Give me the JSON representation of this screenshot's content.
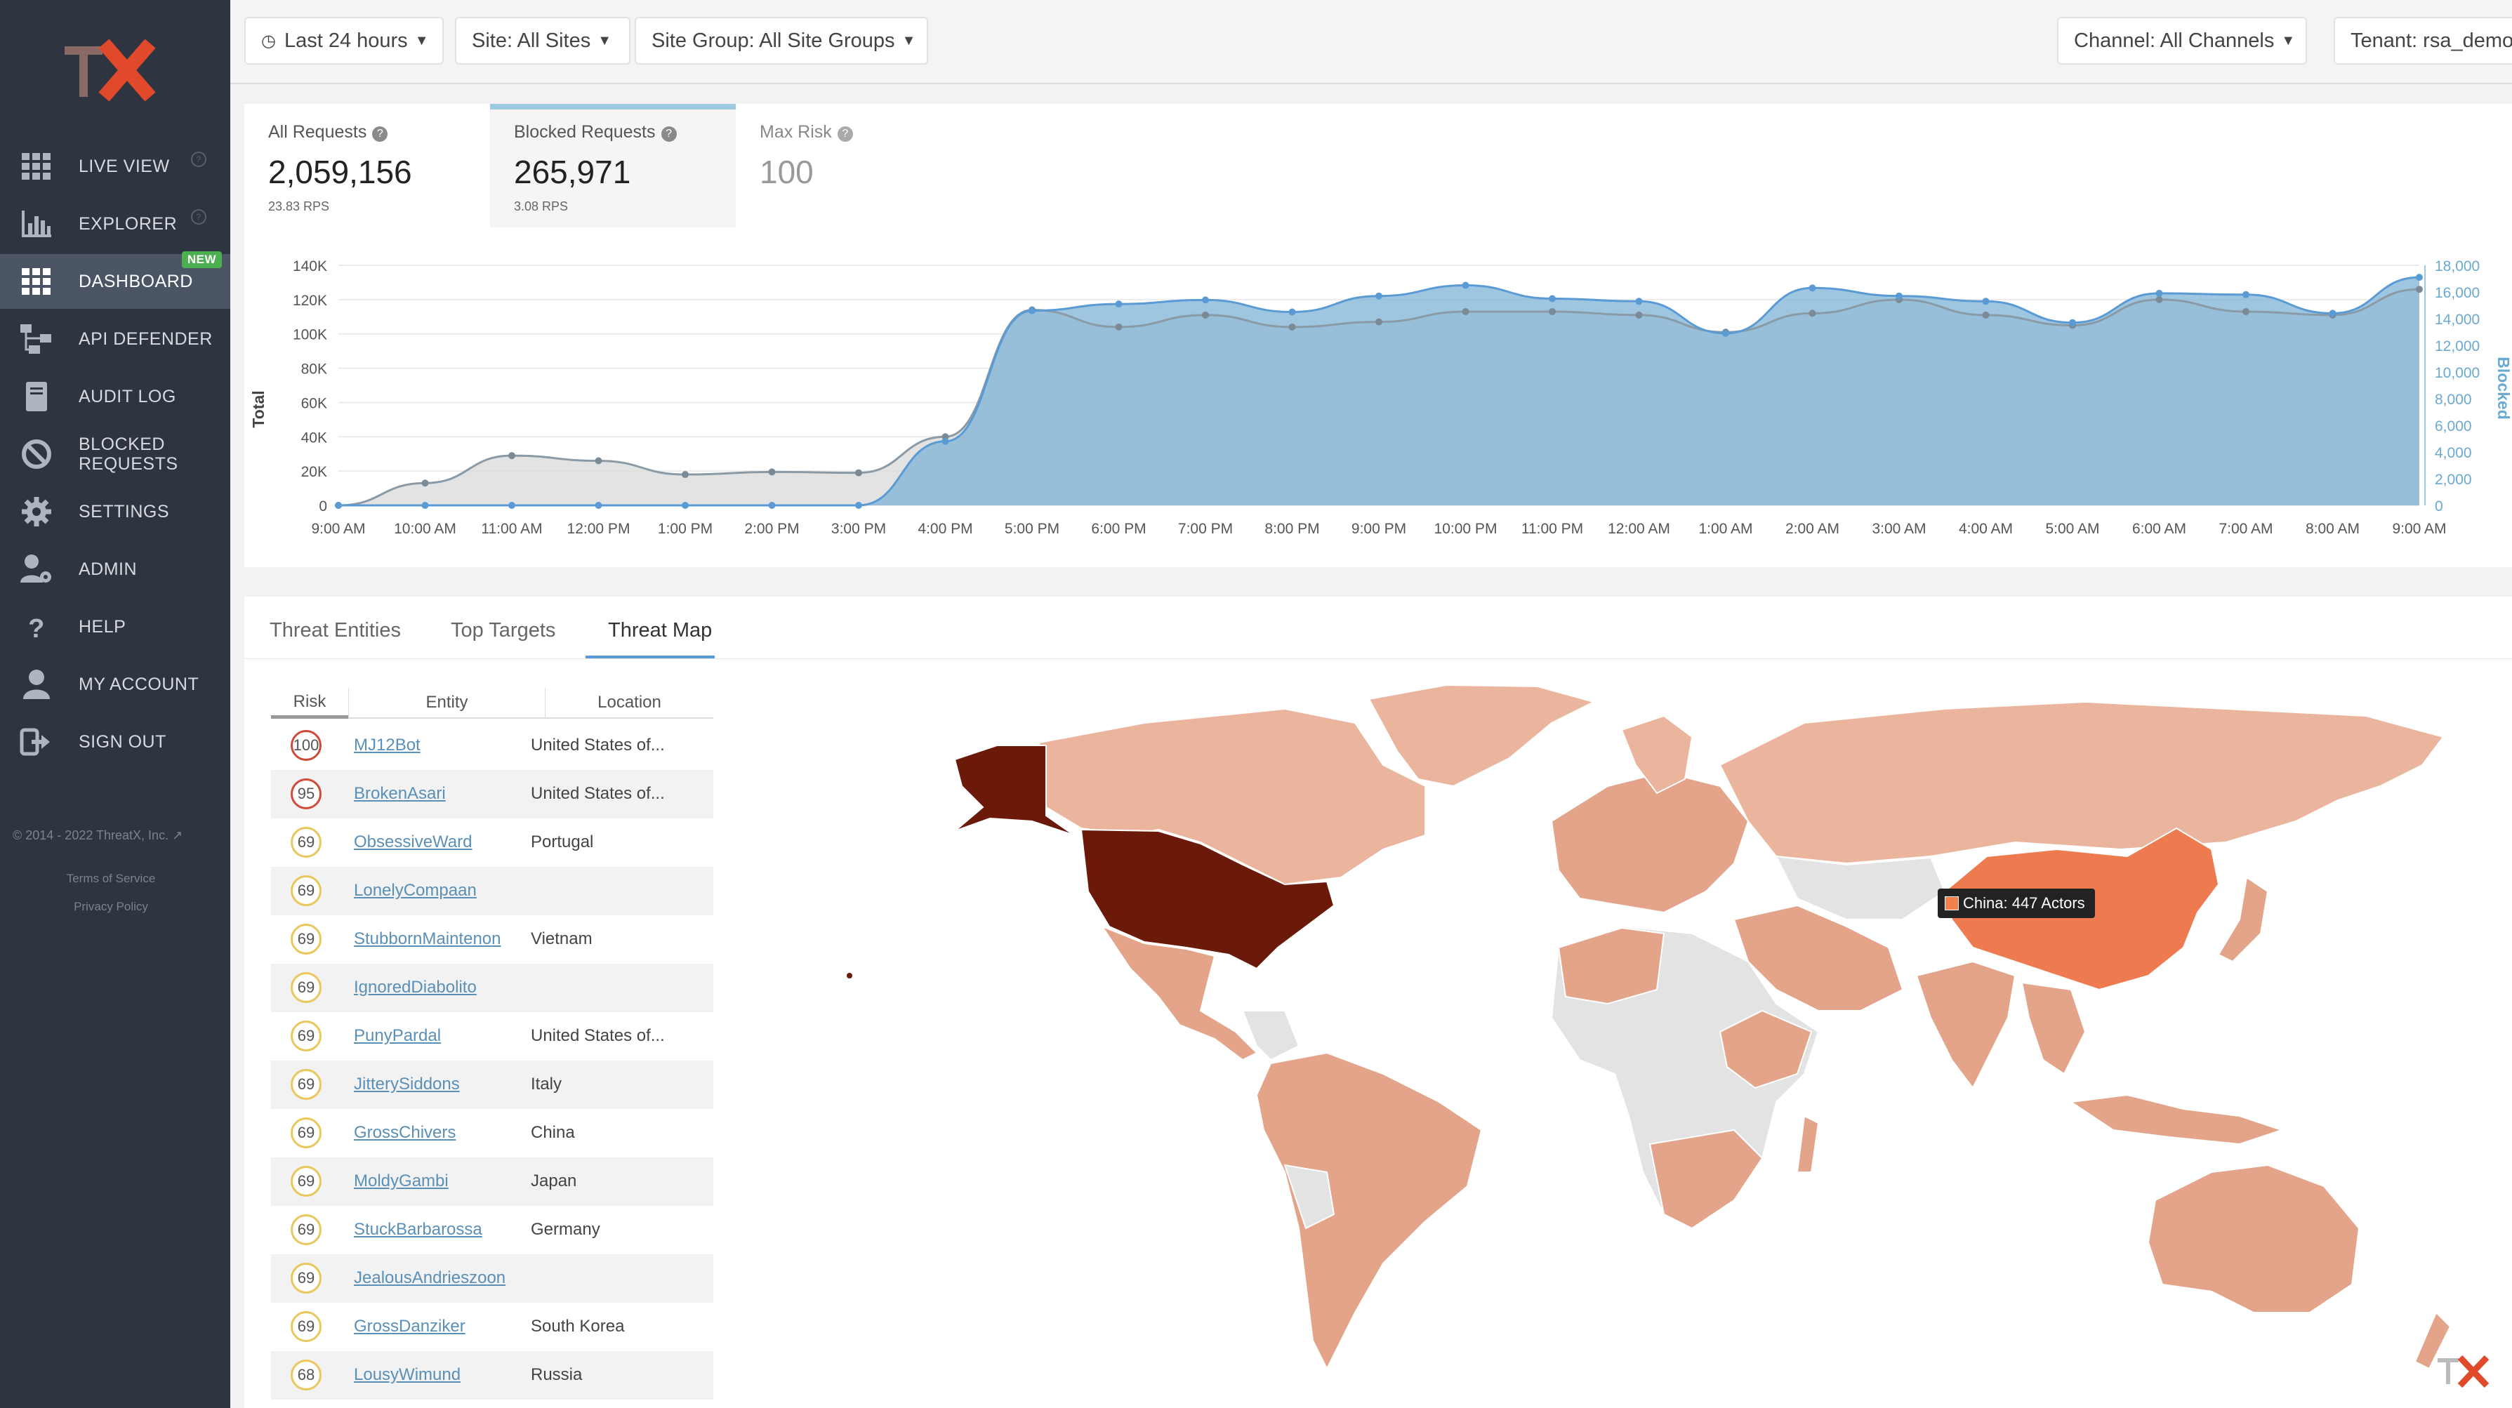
{
  "sidebar": {
    "items": [
      {
        "label": "LIVE VIEW",
        "icon": "grid-icon"
      },
      {
        "label": "EXPLORER",
        "icon": "bar-chart-icon"
      },
      {
        "label": "DASHBOARD",
        "icon": "grid-icon",
        "badge": "NEW",
        "active": true
      },
      {
        "label": "API DEFENDER",
        "icon": "network-icon"
      },
      {
        "label": "AUDIT LOG",
        "icon": "book-icon"
      },
      {
        "label_line1": "BLOCKED",
        "label_line2": "REQUESTS",
        "icon": "ban-icon"
      },
      {
        "label": "SETTINGS",
        "icon": "gear-icon"
      },
      {
        "label": "ADMIN",
        "icon": "user-gear-icon"
      },
      {
        "label": "HELP",
        "icon": "question-icon"
      },
      {
        "label": "MY ACCOUNT",
        "icon": "user-icon"
      },
      {
        "label": "SIGN OUT",
        "icon": "sign-out-icon"
      }
    ],
    "copyright": "© 2014 - 2022 ThreatX, Inc.",
    "terms": "Terms of Service",
    "privacy": "Privacy Policy"
  },
  "topbar": {
    "time_range": "Last 24 hours",
    "site": "Site: All Sites",
    "site_group": "Site Group: All Site Groups",
    "channel": "Channel: All Channels",
    "tenant": "Tenant: rsa_demo"
  },
  "stats": {
    "all_requests": {
      "label": "All Requests",
      "value": "2,059,156",
      "sub": "23.83 RPS"
    },
    "blocked_requests": {
      "label": "Blocked Requests",
      "value": "265,971",
      "sub": "3.08 RPS"
    },
    "max_risk": {
      "label": "Max Risk",
      "value": "100"
    }
  },
  "chart_data": {
    "type": "area",
    "x": [
      "9:00 AM",
      "10:00 AM",
      "11:00 AM",
      "12:00 PM",
      "1:00 PM",
      "2:00 PM",
      "3:00 PM",
      "4:00 PM",
      "5:00 PM",
      "6:00 PM",
      "7:00 PM",
      "8:00 PM",
      "9:00 PM",
      "10:00 PM",
      "11:00 PM",
      "12:00 AM",
      "1:00 AM",
      "2:00 AM",
      "3:00 AM",
      "4:00 AM",
      "5:00 AM",
      "6:00 AM",
      "7:00 AM",
      "8:00 AM",
      "9:00 AM"
    ],
    "ylabel": "Total",
    "y2label": "Blocked",
    "ylim": [
      0,
      140000
    ],
    "y2lim": [
      0,
      18000
    ],
    "yticks": [
      "0",
      "20K",
      "40K",
      "60K",
      "80K",
      "100K",
      "120K",
      "140K"
    ],
    "y2ticks": [
      "0",
      "2,000",
      "4,000",
      "6,000",
      "8,000",
      "10,000",
      "12,000",
      "14,000",
      "16,000",
      "18,000"
    ],
    "series": [
      {
        "values": [
          0,
          13000,
          29000,
          26000,
          18000,
          19500,
          19000,
          40000,
          114000,
          104000,
          111000,
          104000,
          107000,
          113000,
          113000,
          111000,
          101000,
          112000,
          120000,
          111000,
          105000,
          120000,
          113000,
          111000,
          126000
        ],
        "color": "#8a9aa6"
      },
      {
        "values": [
          0,
          0,
          0,
          0,
          0,
          0,
          0,
          4800,
          14600,
          15100,
          15400,
          14500,
          15700,
          16500,
          15500,
          15300,
          12900,
          16300,
          15700,
          15300,
          13700,
          15900,
          15800,
          14400,
          17100
        ],
        "color": "#7fb3d5"
      }
    ]
  },
  "tabs": [
    "Threat Entities",
    "Top Targets",
    "Threat Map"
  ],
  "active_tab": "Threat Map",
  "table": {
    "headers": {
      "risk": "Risk",
      "entity": "Entity",
      "location": "Location"
    },
    "rows": [
      {
        "risk": "100",
        "entity": "MJ12Bot",
        "location": "United States of..."
      },
      {
        "risk": "95",
        "entity": "BrokenAsari",
        "location": "United States of..."
      },
      {
        "risk": "69",
        "entity": "ObsessiveWard",
        "location": "Portugal"
      },
      {
        "risk": "69",
        "entity": "LonelyCompaan",
        "location": ""
      },
      {
        "risk": "69",
        "entity": "StubbornMaintenon",
        "location": "Vietnam"
      },
      {
        "risk": "69",
        "entity": "IgnoredDiabolito",
        "location": ""
      },
      {
        "risk": "69",
        "entity": "PunyPardal",
        "location": "United States of..."
      },
      {
        "risk": "69",
        "entity": "JitterySiddons",
        "location": "Italy"
      },
      {
        "risk": "69",
        "entity": "GrossChivers",
        "location": "China"
      },
      {
        "risk": "69",
        "entity": "MoldyGambi",
        "location": "Japan"
      },
      {
        "risk": "69",
        "entity": "StuckBarbarossa",
        "location": "Germany"
      },
      {
        "risk": "69",
        "entity": "JealousAndrieszoon",
        "location": ""
      },
      {
        "risk": "69",
        "entity": "GrossDanziker",
        "location": "South Korea"
      },
      {
        "risk": "68",
        "entity": "LousyWimund",
        "location": "Russia"
      }
    ]
  },
  "map": {
    "tooltip": "China: 447 Actors",
    "colors": {
      "high": "#6b1a0a",
      "medium": "#ee7b4f",
      "low": "#e3a48a",
      "lighter": "#ebb49d",
      "none": "#e3e3e3"
    }
  },
  "colors": {
    "sidebar_bg": "#2e3440",
    "accent": "#5b9bd5",
    "badge_new": "#4caf50"
  }
}
